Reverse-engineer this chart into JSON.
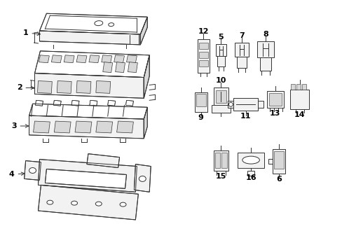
{
  "background_color": "#ffffff",
  "line_color": "#333333",
  "label_color": "#000000",
  "fig_width": 4.89,
  "fig_height": 3.6,
  "dpi": 100,
  "labels": [
    "1",
    "2",
    "3",
    "4",
    "5",
    "6",
    "7",
    "8",
    "9",
    "10",
    "11",
    "12",
    "13",
    "14",
    "15",
    "16"
  ]
}
